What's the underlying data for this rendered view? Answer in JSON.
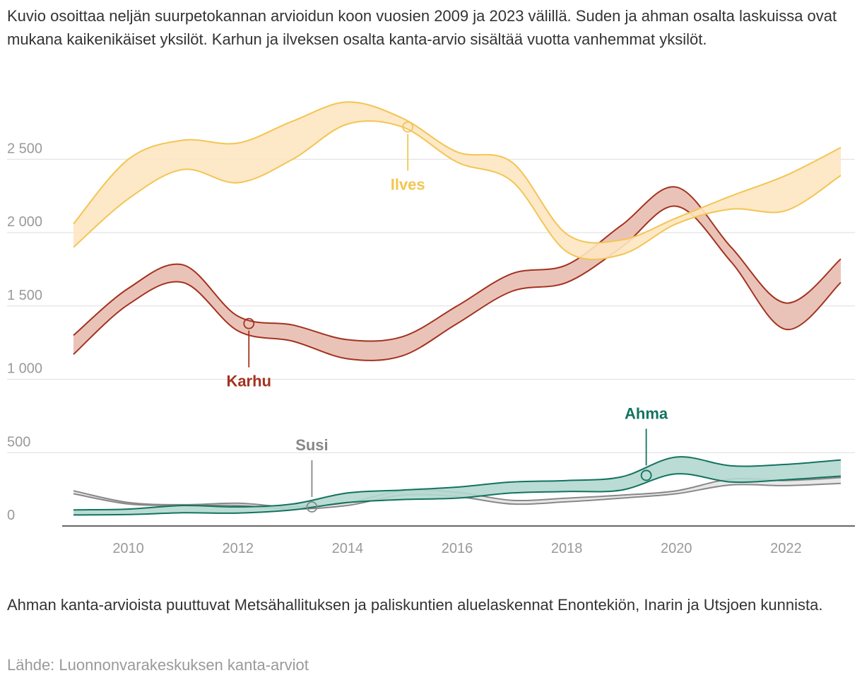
{
  "description": "Kuvio osoittaa neljän suurpetokannan arvioidun koon vuosien 2009 ja 2023 välillä. Suden ja ahman osalta laskuissa ovat mukana kaikenikäiset yksilöt. Karhun ja ilveksen osalta kanta-arvio sisältää vuotta vanhemmat yksilöt.",
  "note": "Ahman kanta-arvioista puuttuvat Metsähallituksen ja paliskuntien aluelaskennat Enontekiön, Inarin ja Utsjoen kunnista.",
  "source": "Lähde: Luonnonvarakeskuksen kanta-arviot",
  "colors": {
    "ilves_line": "#f3c552",
    "ilves_fill": "#fde6c2",
    "karhu_line": "#a33220",
    "karhu_fill": "#e8bcb0",
    "ahma_line": "#12735f",
    "ahma_fill": "#b3d8cf",
    "susi_line": "#888888",
    "susi_fill": "#e2e2e2"
  },
  "chart_data": {
    "type": "area",
    "subtype": "range-band",
    "xlim": [
      2009,
      2023
    ],
    "ylim": [
      0,
      2900
    ],
    "yticks": [
      {
        "value": 0,
        "label": "0"
      },
      {
        "value": 500,
        "label": "500"
      },
      {
        "value": 1000,
        "label": "1 000"
      },
      {
        "value": 1500,
        "label": "1 500"
      },
      {
        "value": 2000,
        "label": "2 000"
      },
      {
        "value": 2500,
        "label": "2 500"
      }
    ],
    "xticks": [
      {
        "value": 2010,
        "label": "2010"
      },
      {
        "value": 2012,
        "label": "2012"
      },
      {
        "value": 2014,
        "label": "2014"
      },
      {
        "value": 2016,
        "label": "2016"
      },
      {
        "value": 2018,
        "label": "2018"
      },
      {
        "value": 2020,
        "label": "2020"
      },
      {
        "value": 2022,
        "label": "2022"
      }
    ],
    "grid": true,
    "x": [
      2009,
      2010,
      2011,
      2012,
      2013,
      2014,
      2015,
      2016,
      2017,
      2018,
      2019,
      2020,
      2021,
      2022,
      2023
    ],
    "series": [
      {
        "key": "ilves",
        "name": "Ilves",
        "low": [
          1900,
          2230,
          2430,
          2340,
          2500,
          2740,
          2720,
          2480,
          2350,
          1870,
          1850,
          2060,
          2160,
          2150,
          2390
        ],
        "high": [
          2060,
          2500,
          2630,
          2610,
          2760,
          2890,
          2780,
          2550,
          2480,
          1990,
          1950,
          2100,
          2250,
          2390,
          2580
        ],
        "label_year": 2015.1,
        "label_value": 2720,
        "label_pos": "below"
      },
      {
        "key": "karhu",
        "name": "Karhu",
        "low": [
          1170,
          1510,
          1660,
          1330,
          1260,
          1140,
          1160,
          1380,
          1600,
          1660,
          1900,
          2180,
          1800,
          1340,
          1660
        ],
        "high": [
          1300,
          1620,
          1780,
          1430,
          1370,
          1270,
          1290,
          1500,
          1720,
          1780,
          2050,
          2310,
          1900,
          1520,
          1820
        ],
        "label_year": 2012.2,
        "label_value": 1380,
        "label_pos": "below"
      },
      {
        "key": "ahma",
        "name": "Ahma",
        "low": [
          75,
          78,
          90,
          88,
          110,
          160,
          180,
          190,
          225,
          235,
          245,
          355,
          300,
          315,
          340
        ],
        "high": [
          110,
          115,
          140,
          130,
          150,
          225,
          245,
          265,
          300,
          310,
          335,
          470,
          410,
          420,
          450
        ],
        "label_year": 2019.45,
        "label_value": 345,
        "label_pos": "above"
      },
      {
        "key": "susi",
        "name": "Susi",
        "low": [
          220,
          150,
          140,
          140,
          115,
          140,
          210,
          200,
          150,
          165,
          190,
          220,
          280,
          275,
          290
        ],
        "high": [
          240,
          160,
          145,
          155,
          130,
          160,
          240,
          230,
          175,
          190,
          210,
          240,
          320,
          310,
          330
        ],
        "label_year": 2013.35,
        "label_value": 130,
        "label_pos": "above"
      }
    ]
  }
}
